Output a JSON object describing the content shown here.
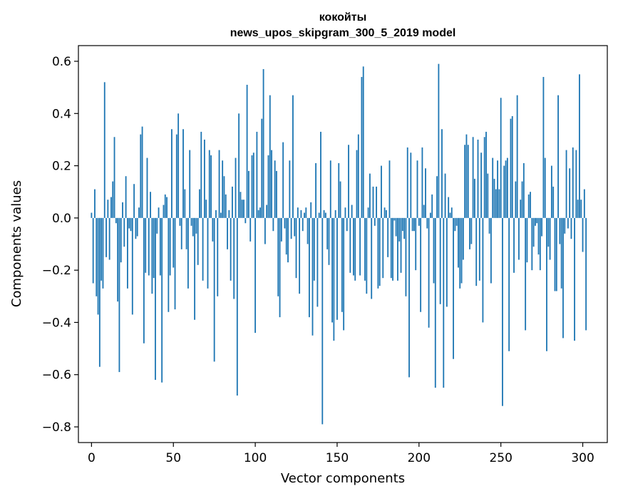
{
  "chart_data": {
    "type": "bar",
    "title": "кокойты",
    "subtitle": "news_upos_skipgram_300_5_2019 model",
    "xlabel": "Vector components",
    "ylabel": "Components values",
    "xlim": [
      -8,
      315
    ],
    "ylim": [
      -0.86,
      0.66
    ],
    "xticks": [
      0,
      50,
      100,
      150,
      200,
      250,
      300
    ],
    "yticks": [
      -0.8,
      -0.6,
      -0.4,
      -0.2,
      0.0,
      0.2,
      0.4,
      0.6
    ],
    "ytick_labels": [
      "−0.8",
      "−0.6",
      "−0.4",
      "−0.2",
      "0.0",
      "0.2",
      "0.4",
      "0.6"
    ],
    "color": "#1f77b4",
    "grid": false,
    "values": [
      0.02,
      -0.25,
      0.11,
      -0.3,
      -0.37,
      -0.57,
      -0.24,
      -0.27,
      0.52,
      -0.15,
      0.07,
      -0.16,
      0.08,
      0.14,
      0.31,
      -0.02,
      -0.32,
      -0.59,
      -0.17,
      0.06,
      -0.11,
      0.16,
      -0.27,
      -0.04,
      -0.05,
      -0.37,
      0.13,
      -0.08,
      -0.07,
      0.04,
      0.32,
      0.35,
      -0.48,
      -0.21,
      0.23,
      -0.22,
      0.1,
      -0.29,
      -0.23,
      -0.62,
      -0.06,
      0.04,
      -0.22,
      -0.63,
      0.05,
      0.09,
      0.08,
      -0.36,
      -0.22,
      0.34,
      -0.19,
      -0.35,
      0.32,
      0.4,
      -0.03,
      -0.12,
      0.34,
      0.11,
      -0.12,
      -0.27,
      0.26,
      -0.03,
      -0.07,
      -0.39,
      -0.06,
      -0.18,
      0.11,
      0.33,
      -0.24,
      0.3,
      0.07,
      -0.27,
      0.26,
      0.24,
      -0.09,
      -0.55,
      0.03,
      -0.3,
      0.26,
      0.02,
      0.22,
      0.16,
      0.09,
      -0.12,
      0.03,
      -0.24,
      0.12,
      -0.31,
      0.23,
      -0.68,
      0.4,
      0.1,
      0.07,
      0.07,
      -0.02,
      0.51,
      0.18,
      -0.09,
      0.24,
      0.25,
      -0.44,
      0.33,
      0.03,
      0.04,
      0.38,
      0.57,
      -0.1,
      0.05,
      0.24,
      0.47,
      0.26,
      -0.05,
      0.22,
      0.18,
      -0.3,
      -0.38,
      -0.09,
      0.29,
      -0.04,
      -0.14,
      -0.17,
      0.22,
      -0.08,
      0.47,
      -0.07,
      -0.23,
      0.04,
      -0.29,
      0.03,
      -0.05,
      0.02,
      0.04,
      -0.1,
      -0.38,
      0.06,
      -0.45,
      -0.24,
      0.21,
      -0.34,
      0.02,
      0.33,
      -0.79,
      0.03,
      0.02,
      -0.12,
      -0.18,
      0.22,
      -0.4,
      -0.47,
      0.03,
      -0.39,
      0.21,
      0.14,
      -0.36,
      -0.43,
      0.04,
      -0.05,
      0.28,
      -0.21,
      0.05,
      -0.22,
      -0.24,
      0.26,
      0.32,
      -0.22,
      0.54,
      0.58,
      -0.24,
      -0.29,
      0.04,
      0.17,
      -0.31,
      0.12,
      -0.03,
      0.12,
      -0.27,
      -0.26,
      0.2,
      -0.23,
      0.04,
      0.03,
      -0.15,
      0.22,
      -0.23,
      -0.24,
      -0.01,
      -0.07,
      -0.24,
      -0.09,
      -0.21,
      -0.05,
      -0.08,
      -0.3,
      0.27,
      -0.61,
      0.25,
      -0.05,
      -0.05,
      -0.2,
      0.22,
      -0.03,
      -0.36,
      0.27,
      0.05,
      0.19,
      -0.04,
      -0.42,
      0.02,
      0.09,
      -0.25,
      -0.65,
      0.16,
      0.59,
      -0.33,
      0.34,
      -0.65,
      0.17,
      -0.34,
      0.08,
      0.02,
      0.04,
      -0.54,
      -0.05,
      -0.03,
      -0.19,
      -0.27,
      -0.25,
      -0.16,
      0.28,
      0.32,
      0.28,
      -0.12,
      -0.1,
      0.31,
      0.15,
      -0.26,
      0.3,
      -0.24,
      0.25,
      -0.4,
      0.31,
      0.33,
      0.17,
      -0.06,
      -0.25,
      0.23,
      0.15,
      0.11,
      0.22,
      0.11,
      0.46,
      -0.72,
      0.2,
      0.22,
      0.23,
      -0.51,
      0.38,
      0.39,
      -0.21,
      0.14,
      0.47,
      -0.16,
      0.07,
      0.14,
      0.21,
      -0.43,
      -0.17,
      0.09,
      0.1,
      -0.2,
      -0.11,
      -0.03,
      -0.02,
      -0.14,
      -0.2,
      -0.07,
      0.54,
      0.23,
      -0.51,
      -0.11,
      -0.16,
      0.2,
      0.12,
      -0.28,
      -0.28,
      0.47,
      -0.1,
      -0.27,
      -0.46,
      -0.06,
      0.26,
      -0.04,
      0.19,
      -0.08,
      0.27,
      -0.47,
      0.26,
      0.07,
      0.55,
      0.07,
      -0.13,
      0.11,
      -0.43
    ]
  }
}
